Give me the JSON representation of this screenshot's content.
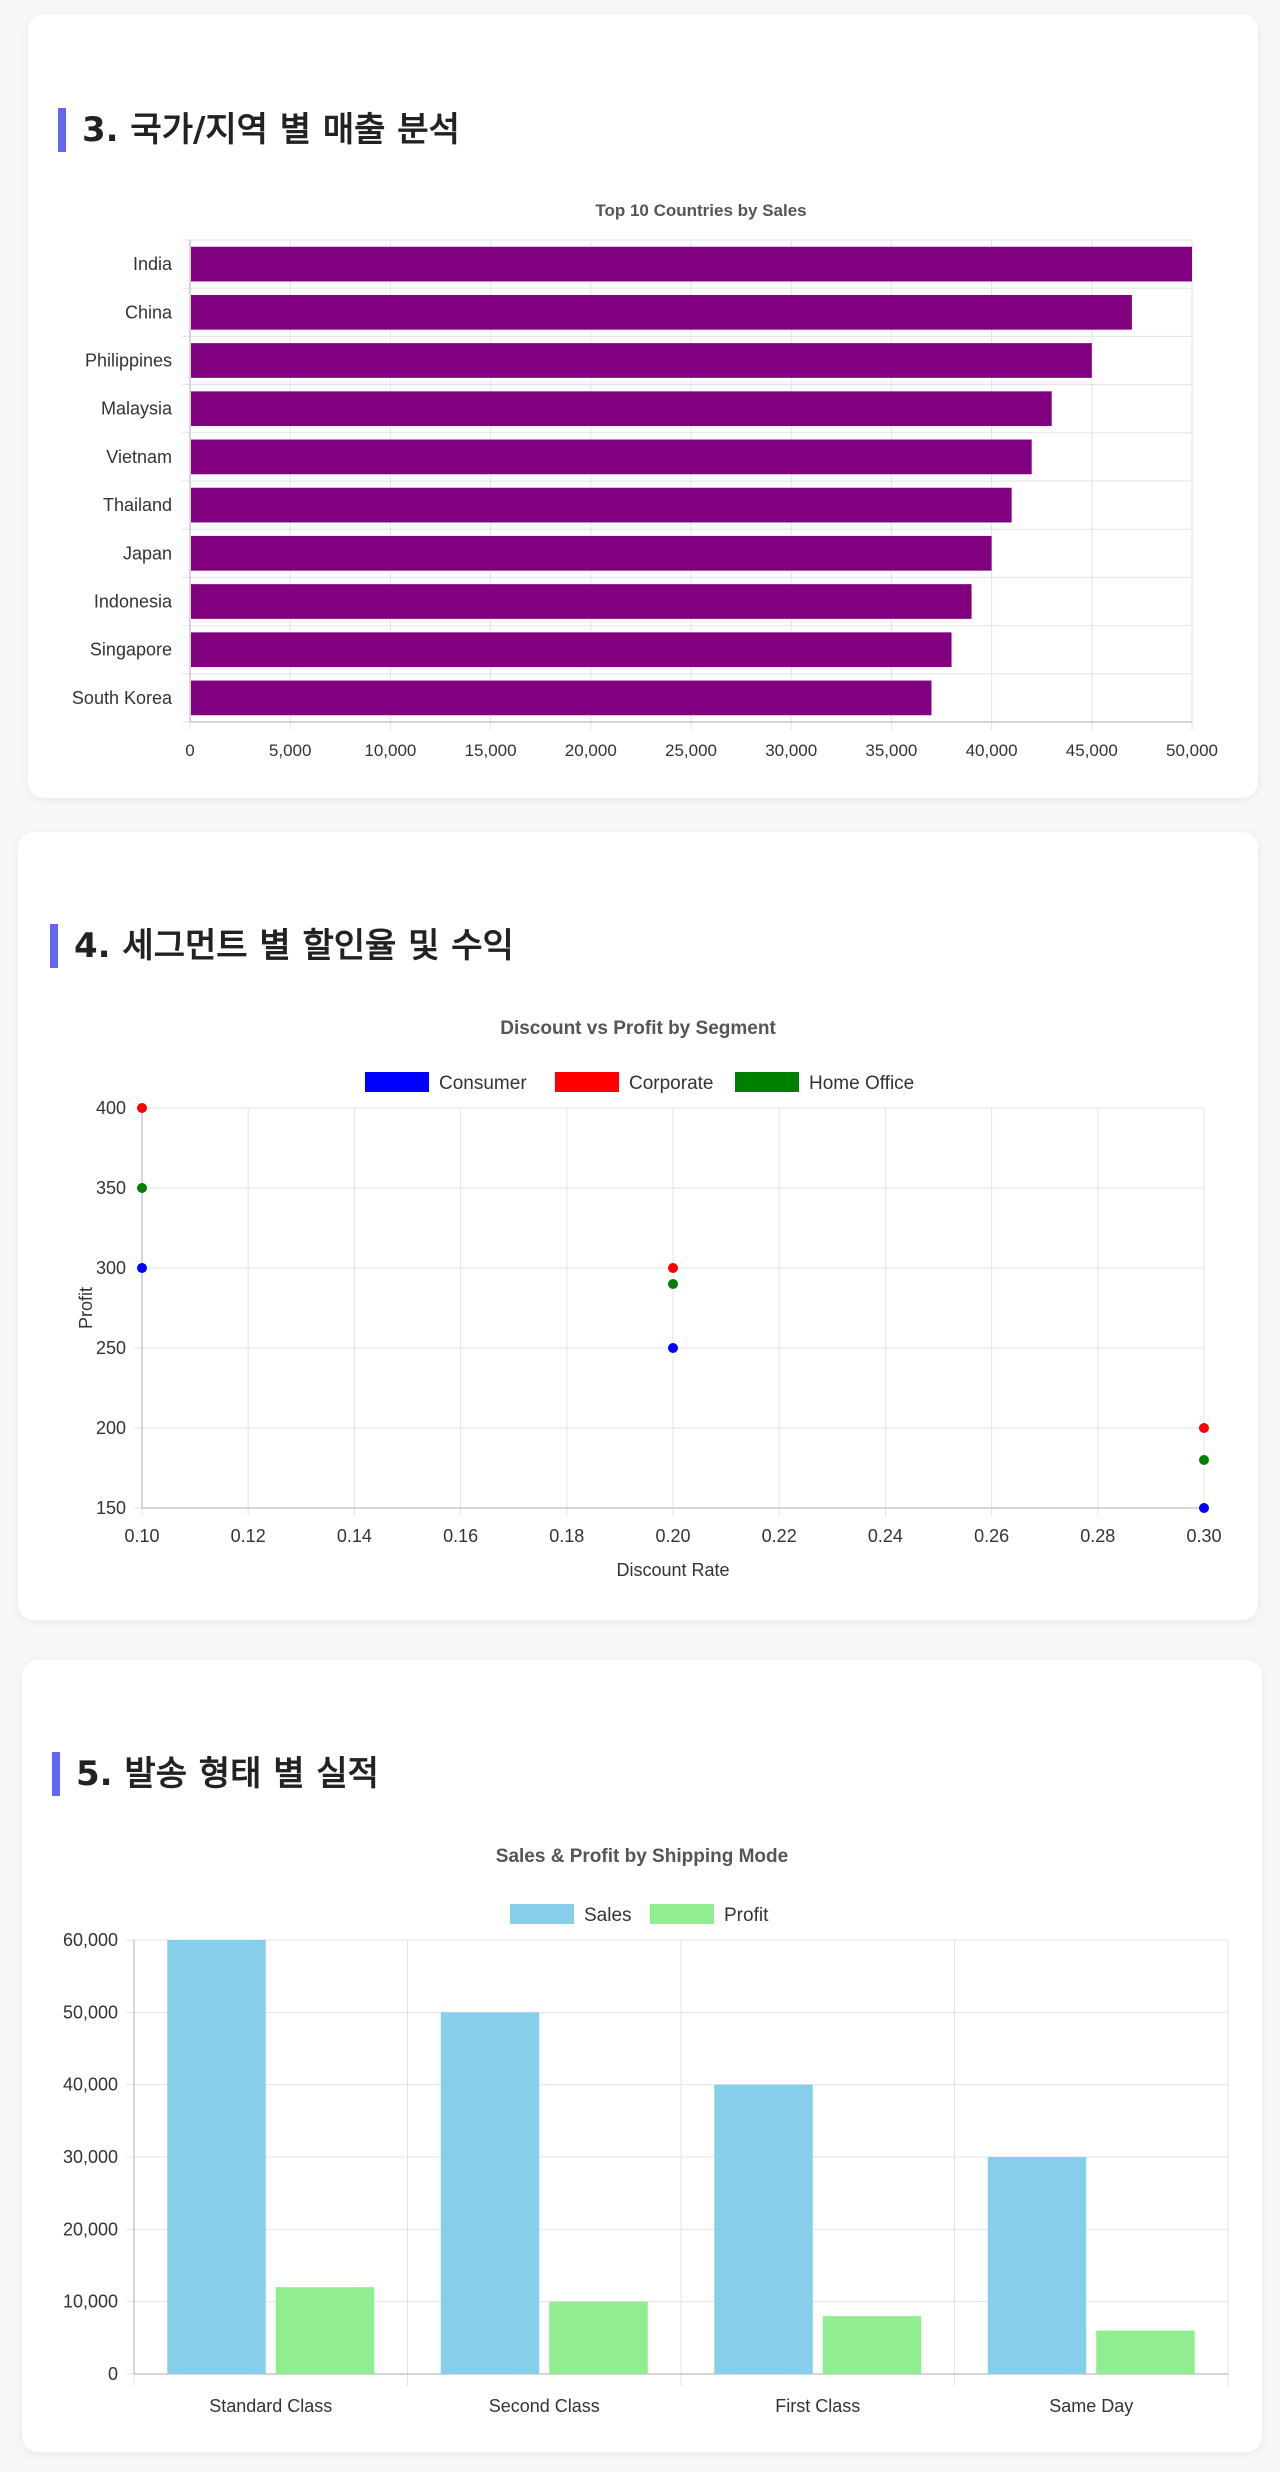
{
  "sections": [
    {
      "title": "3. 국가/지역 별 매출 분석"
    },
    {
      "title": "4. 세그먼트 별 할인율 및 수익"
    },
    {
      "title": "5. 발송 형태 별 실적"
    }
  ],
  "colors": {
    "accent": "#6366f1",
    "country_bar": "#800080",
    "consumer": "#0000ff",
    "corporate": "#ff0000",
    "home_office": "#008000",
    "sales": "#87ceeb",
    "profit": "#90ee90"
  },
  "chart_data": [
    {
      "type": "bar",
      "orientation": "horizontal",
      "title": "Top 10 Countries by Sales",
      "categories": [
        "India",
        "China",
        "Philippines",
        "Malaysia",
        "Vietnam",
        "Thailand",
        "Japan",
        "Indonesia",
        "Singapore",
        "South Korea"
      ],
      "values": [
        50000,
        47000,
        45000,
        43000,
        42000,
        41000,
        40000,
        39000,
        38000,
        37000
      ],
      "xlim": [
        0,
        50000
      ],
      "xticks": [
        "0",
        "5,000",
        "10,000",
        "15,000",
        "20,000",
        "25,000",
        "30,000",
        "35,000",
        "40,000",
        "45,000",
        "50,000"
      ],
      "grid": true
    },
    {
      "type": "scatter",
      "title": "Discount vs Profit by Segment",
      "xlabel": "Discount Rate",
      "ylabel": "Profit",
      "xlim": [
        0.1,
        0.3
      ],
      "ylim": [
        150,
        400
      ],
      "xticks": [
        "0.10",
        "0.12",
        "0.14",
        "0.16",
        "0.18",
        "0.20",
        "0.22",
        "0.24",
        "0.26",
        "0.28",
        "0.30"
      ],
      "yticks": [
        "400",
        "350",
        "300",
        "250",
        "200",
        "150"
      ],
      "legend": "top",
      "series": [
        {
          "name": "Consumer",
          "color": "#0000ff",
          "points": [
            [
              0.1,
              300
            ],
            [
              0.2,
              250
            ],
            [
              0.3,
              150
            ]
          ]
        },
        {
          "name": "Corporate",
          "color": "#ff0000",
          "points": [
            [
              0.1,
              400
            ],
            [
              0.2,
              300
            ],
            [
              0.3,
              200
            ]
          ]
        },
        {
          "name": "Home Office",
          "color": "#008000",
          "points": [
            [
              0.1,
              350
            ],
            [
              0.2,
              290
            ],
            [
              0.3,
              180
            ]
          ]
        }
      ],
      "grid": true
    },
    {
      "type": "bar",
      "title": "Sales & Profit by Shipping Mode",
      "categories": [
        "Standard Class",
        "Second Class",
        "First Class",
        "Same Day"
      ],
      "ylim": [
        0,
        60000
      ],
      "yticks": [
        "60,000",
        "50,000",
        "40,000",
        "30,000",
        "20,000",
        "10,000",
        "0"
      ],
      "legend": "top",
      "series": [
        {
          "name": "Sales",
          "color": "#87ceeb",
          "values": [
            60000,
            50000,
            40000,
            30000
          ]
        },
        {
          "name": "Profit",
          "color": "#90ee90",
          "values": [
            12000,
            10000,
            8000,
            6000
          ]
        }
      ],
      "grid": true
    }
  ]
}
